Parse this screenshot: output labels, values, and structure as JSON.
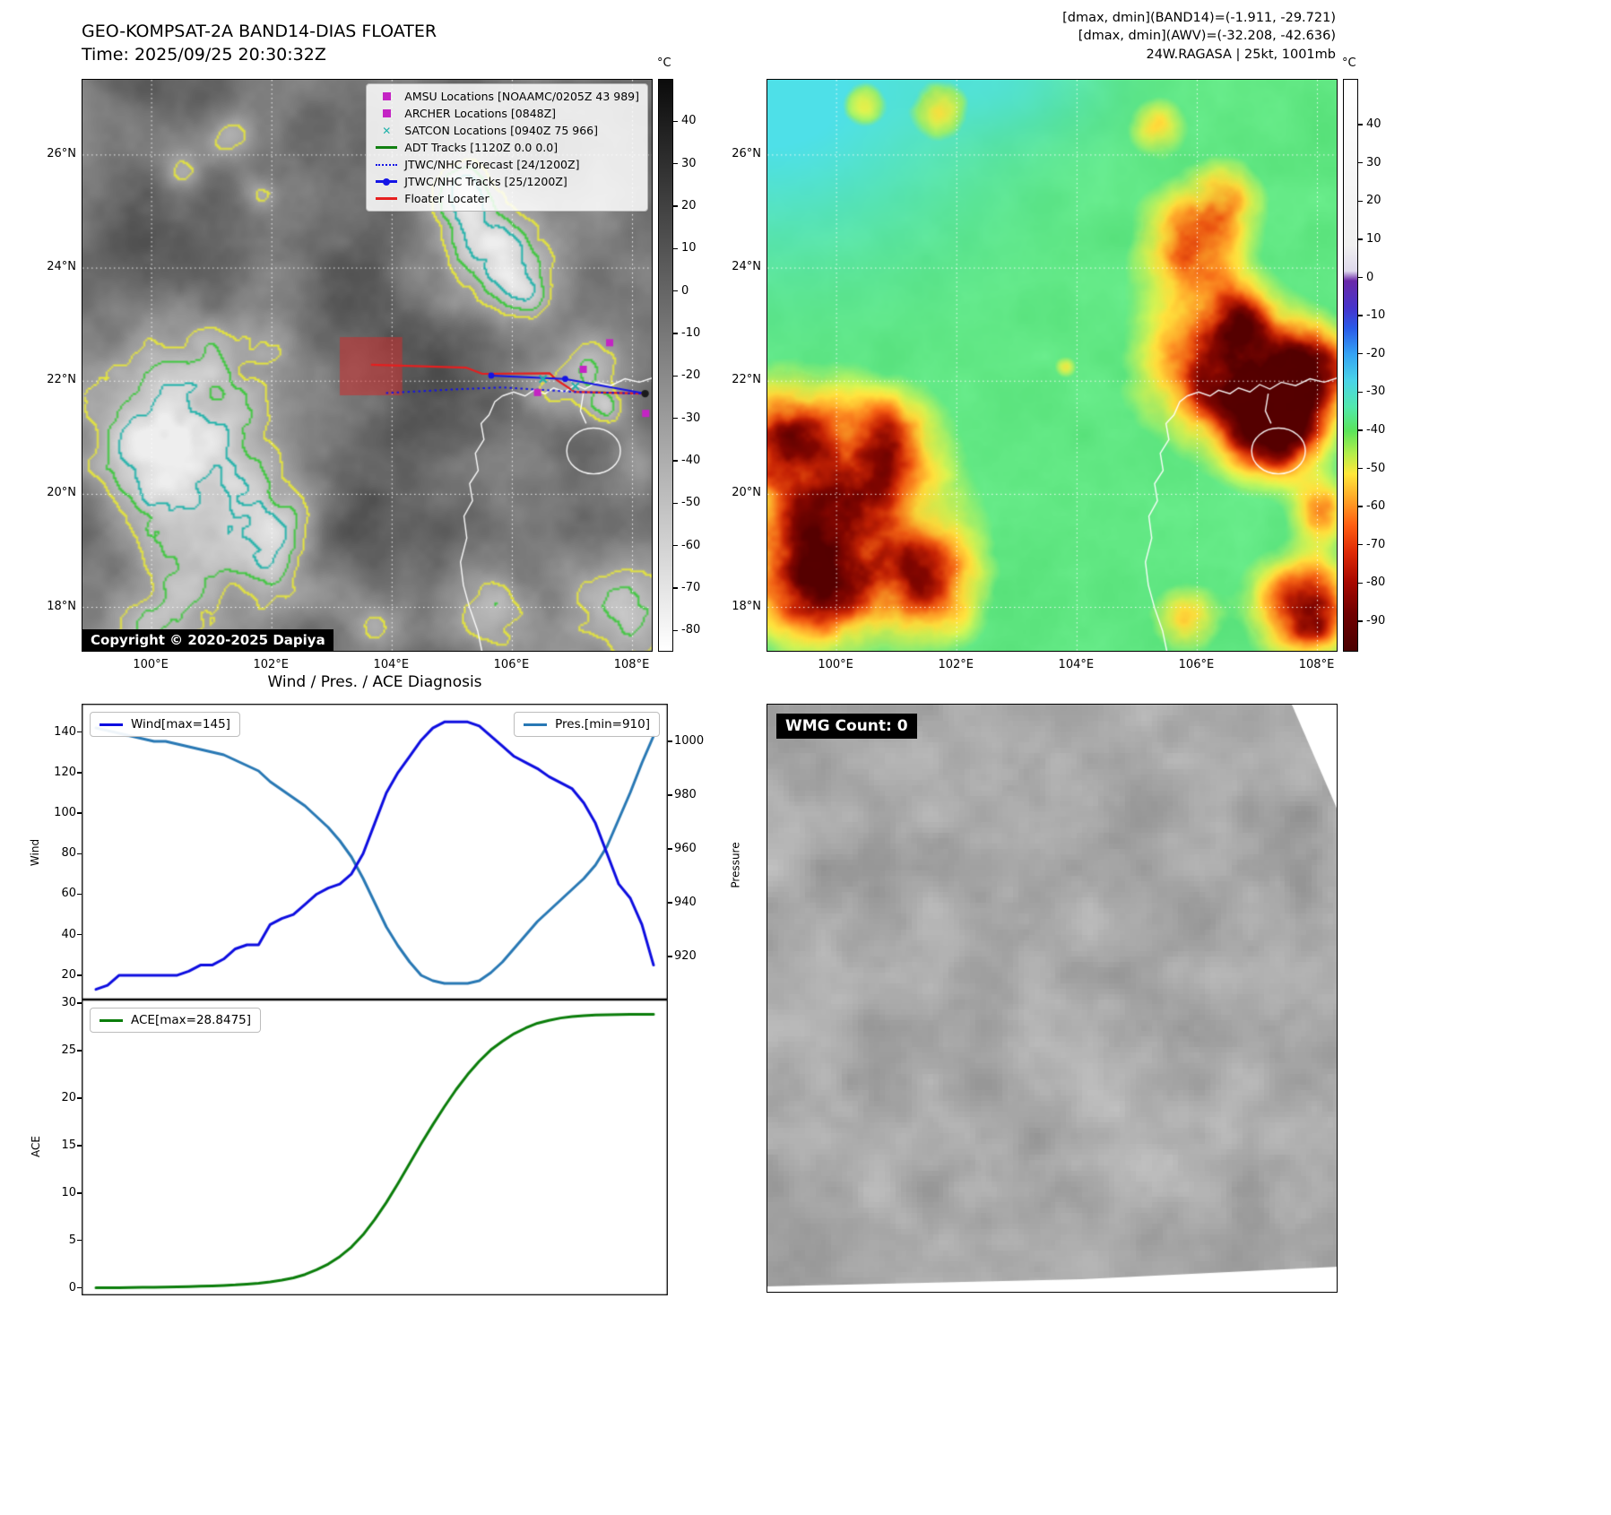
{
  "band14": {
    "title": "GEO-KOMPSAT-2A BAND14-DIAS FLOATER",
    "time_label": "Time: 2025/09/25 20:30:32Z",
    "copyright": "Copyright © 2020-2025 Dapiya",
    "colorbar": {
      "unit": "°C",
      "ticks": [
        40,
        30,
        20,
        10,
        0,
        -10,
        -20,
        -30,
        -40,
        -50,
        -60,
        -70,
        -80
      ]
    },
    "lat_ticks": [
      "26°N",
      "24°N",
      "22°N",
      "20°N",
      "18°N"
    ],
    "lon_ticks": [
      "100°E",
      "102°E",
      "104°E",
      "106°E",
      "108°E"
    ],
    "legend": [
      {
        "label": "AMSU Locations [NOAAMC/0205Z 43 989]",
        "marker": "square",
        "color": "#c424c4"
      },
      {
        "label": "ARCHER Locations [0848Z]",
        "marker": "square",
        "color": "#c424c4"
      },
      {
        "label": "SATCON Locations [0940Z 75 966]",
        "marker": "x",
        "color": "#20b2aa"
      },
      {
        "label": "ADT Tracks [1120Z 0.0 0.0]",
        "marker": "line",
        "color": "#128012"
      },
      {
        "label": "JTWC/NHC Forecast [24/1200Z]",
        "marker": "dotted",
        "color": "#1414e6"
      },
      {
        "label": "JTWC/NHC Tracks [25/1200Z]",
        "marker": "line-dot",
        "color": "#1414e6"
      },
      {
        "label": "Floater Locater",
        "marker": "line",
        "color": "#e61f1f"
      }
    ],
    "overlays": {
      "floater_box_lonlat": [
        103.13,
        104.17,
        21.75,
        22.78
      ],
      "floater_track": [
        [
          103.65,
          22.29
        ],
        [
          105.23,
          22.24
        ],
        [
          105.5,
          22.13
        ],
        [
          106.62,
          22.14
        ],
        [
          106.74,
          22.02
        ],
        [
          107.04,
          21.81
        ],
        [
          108.21,
          21.78
        ]
      ],
      "forecast_track": [
        [
          103.9,
          21.79
        ],
        [
          104.95,
          21.85
        ],
        [
          105.84,
          21.89
        ],
        [
          107.04,
          21.81
        ],
        [
          108.21,
          21.78
        ]
      ],
      "jtwc_track": [
        [
          105.65,
          22.1
        ],
        [
          106.88,
          22.04
        ],
        [
          108.21,
          21.78
        ]
      ],
      "amsu_archer_points": [
        [
          107.62,
          22.68
        ],
        [
          107.18,
          22.21
        ],
        [
          106.42,
          21.8
        ],
        [
          108.22,
          21.43
        ]
      ],
      "satcon_points": [
        [
          106.51,
          22.04
        ],
        [
          107.05,
          21.91
        ]
      ],
      "current_position": [
        108.21,
        21.78
      ]
    }
  },
  "awv": {
    "info_lines": [
      "[dmax, dmin](BAND14)=(-1.911, -29.721)",
      "[dmax, dmin](AWV)=(-32.208, -42.636)",
      "24W.RAGASA | 25kt, 1001mb"
    ],
    "colorbar": {
      "unit": "°C",
      "ticks": [
        40,
        30,
        20,
        10,
        0,
        -10,
        -20,
        -30,
        -40,
        -50,
        -60,
        -70,
        -80,
        -90
      ]
    },
    "lat_ticks": [
      "26°N",
      "24°N",
      "22°N",
      "20°N",
      "18°N"
    ],
    "lon_ticks": [
      "100°E",
      "102°E",
      "104°E",
      "106°E",
      "108°E"
    ]
  },
  "wmg": {
    "count_label": "WMG Count: 0"
  },
  "chart_data": [
    {
      "type": "line",
      "title": "Wind / Pres. / ACE Diagnosis",
      "left_axis": {
        "label": "Wind",
        "ticks": [
          140,
          120,
          100,
          80,
          60,
          40,
          20
        ],
        "range": [
          8,
          154
        ]
      },
      "right_axis": {
        "label": "Pressure",
        "ticks": [
          1000,
          980,
          960,
          940,
          920
        ],
        "range": [
          904,
          1014
        ]
      },
      "series": [
        {
          "name": "Wind[max=145]",
          "axis": "left",
          "color": "#0d0de0",
          "values": [
            13,
            15,
            20,
            20,
            20,
            20,
            20,
            20,
            22,
            25,
            25,
            28,
            33,
            35,
            35,
            45,
            48,
            50,
            55,
            60,
            63,
            65,
            70,
            80,
            95,
            110,
            120,
            128,
            136,
            142,
            145,
            145,
            145,
            143,
            138,
            133,
            128,
            125,
            122,
            118,
            115,
            112,
            105,
            95,
            80,
            65,
            58,
            45,
            25
          ]
        },
        {
          "name": "Pres.[min=910]",
          "axis": "right",
          "color": "#2878b4",
          "values": [
            1005,
            1004,
            1003,
            1002,
            1001,
            1000,
            1000,
            999,
            998,
            997,
            996,
            995,
            993,
            991,
            989,
            985,
            982,
            979,
            976,
            972,
            968,
            963,
            957,
            949,
            940,
            931,
            924,
            918,
            913,
            911,
            910,
            910,
            910,
            911,
            914,
            918,
            923,
            928,
            933,
            937,
            941,
            945,
            949,
            954,
            961,
            971,
            981,
            992,
            1002
          ]
        }
      ],
      "legend_position": "upper-left / upper-right",
      "grid": false
    },
    {
      "type": "line",
      "left_axis": {
        "label": "ACE",
        "ticks": [
          30,
          25,
          20,
          15,
          10,
          5,
          0
        ],
        "range": [
          -0.8,
          30.4
        ]
      },
      "series": [
        {
          "name": "ACE[max=28.8475]",
          "color": "#0a7d0a",
          "values": [
            0,
            0,
            0.01,
            0.02,
            0.04,
            0.06,
            0.08,
            0.1,
            0.13,
            0.16,
            0.2,
            0.25,
            0.3,
            0.38,
            0.48,
            0.62,
            0.8,
            1.05,
            1.4,
            1.9,
            2.5,
            3.3,
            4.3,
            5.6,
            7.2,
            9.0,
            11.0,
            13.1,
            15.2,
            17.2,
            19.1,
            20.9,
            22.5,
            23.9,
            25.1,
            26.0,
            26.8,
            27.4,
            27.9,
            28.2,
            28.45,
            28.6,
            28.7,
            28.76,
            28.8,
            28.82,
            28.84,
            28.845,
            28.8475
          ]
        }
      ],
      "legend_position": "upper-left",
      "grid": false
    }
  ]
}
